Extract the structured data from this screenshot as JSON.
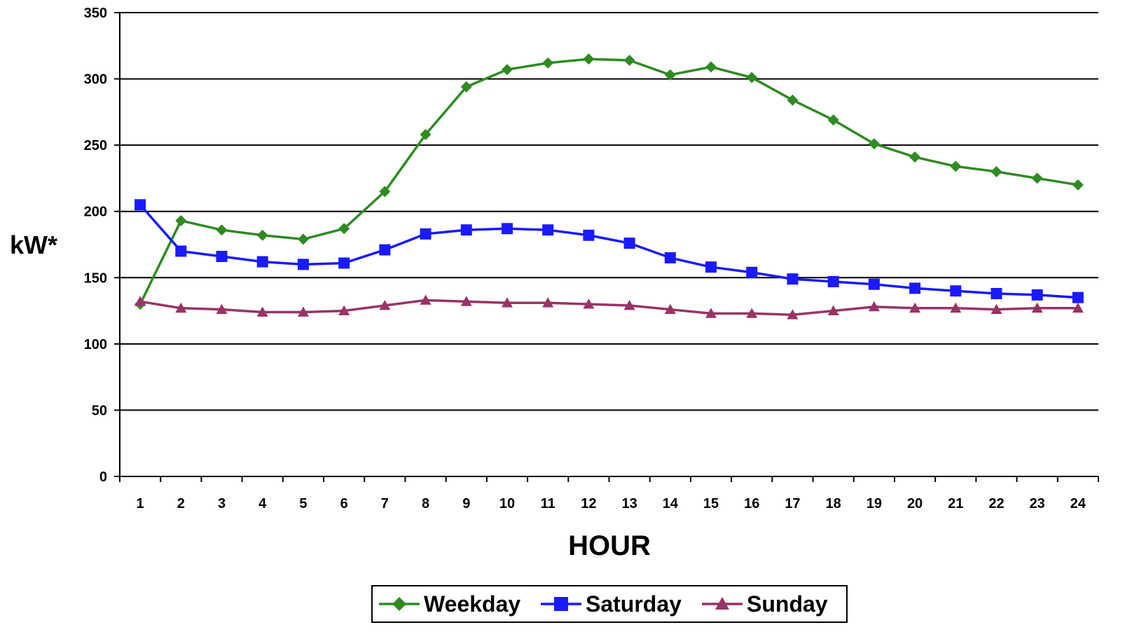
{
  "chart_data": {
    "type": "line",
    "title": "",
    "xlabel": "HOUR",
    "ylabel": "kW*",
    "ylim": [
      0,
      350
    ],
    "yticks": [
      0,
      50,
      100,
      150,
      200,
      250,
      300,
      350
    ],
    "grid": true,
    "legend_position": "bottom",
    "categories": [
      "1",
      "2",
      "3",
      "4",
      "5",
      "6",
      "7",
      "8",
      "9",
      "10",
      "11",
      "12",
      "13",
      "14",
      "15",
      "16",
      "17",
      "18",
      "19",
      "20",
      "21",
      "22",
      "23",
      "24"
    ],
    "series": [
      {
        "name": "Weekday",
        "color": "#2e8b22",
        "marker": "diamond",
        "values": [
          130,
          193,
          186,
          182,
          179,
          187,
          215,
          258,
          294,
          307,
          312,
          315,
          314,
          303,
          309,
          301,
          284,
          269,
          251,
          241,
          234,
          230,
          225,
          220
        ]
      },
      {
        "name": "Saturday",
        "color": "#1a1aff",
        "marker": "square",
        "values": [
          205,
          170,
          166,
          162,
          160,
          161,
          171,
          183,
          186,
          187,
          186,
          182,
          176,
          165,
          158,
          154,
          149,
          147,
          145,
          142,
          140,
          138,
          137,
          135
        ]
      },
      {
        "name": "Sunday",
        "color": "#993366",
        "marker": "triangle",
        "values": [
          132,
          127,
          126,
          124,
          124,
          125,
          129,
          133,
          132,
          131,
          131,
          130,
          129,
          126,
          123,
          123,
          122,
          125,
          128,
          127,
          127,
          126,
          127,
          127
        ]
      }
    ]
  }
}
